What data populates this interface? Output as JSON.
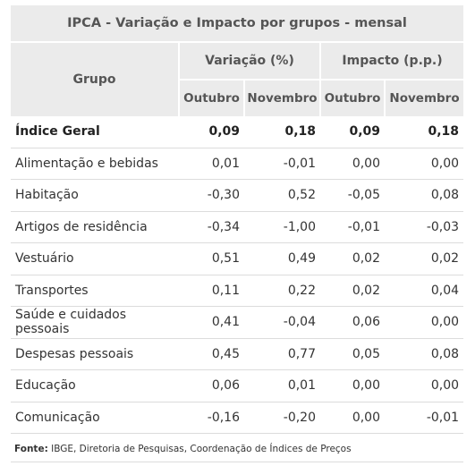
{
  "table": {
    "title": "IPCA - Variação e Impacto por grupos - mensal",
    "group_header": "Grupo",
    "variacao_header": "Variação (%)",
    "impacto_header": "Impacto (p.p.)",
    "month_headers": [
      "Outubro",
      "Novembro",
      "Outubro",
      "Novembro"
    ],
    "rows": [
      {
        "name": "Índice Geral",
        "values": [
          "0,09",
          "0,18",
          "0,09",
          "0,18"
        ]
      },
      {
        "name": "Alimentação e bebidas",
        "values": [
          "0,01",
          "-0,01",
          "0,00",
          "0,00"
        ]
      },
      {
        "name": "Habitação",
        "values": [
          "-0,30",
          "0,52",
          "-0,05",
          "0,08"
        ]
      },
      {
        "name": "Artigos de residência",
        "values": [
          "-0,34",
          "-1,00",
          "-0,01",
          "-0,03"
        ]
      },
      {
        "name": "Vestuário",
        "values": [
          "0,51",
          "0,49",
          "0,02",
          "0,02"
        ]
      },
      {
        "name": "Transportes",
        "values": [
          "0,11",
          "0,22",
          "0,02",
          "0,04"
        ]
      },
      {
        "name": "Saúde e cuidados pessoais",
        "values": [
          "0,41",
          "-0,04",
          "0,06",
          "0,00"
        ]
      },
      {
        "name": "Despesas pessoais",
        "values": [
          "0,45",
          "0,77",
          "0,05",
          "0,08"
        ]
      },
      {
        "name": "Educação",
        "values": [
          "0,06",
          "0,01",
          "0,00",
          "0,00"
        ]
      },
      {
        "name": "Comunicação",
        "values": [
          "-0,16",
          "-0,20",
          "0,00",
          "-0,01"
        ]
      }
    ]
  },
  "footnote": {
    "label": "Fonte:",
    "text": " IBGE, Diretoria de Pesquisas, Coordenação de Índices de Preços"
  },
  "colors": {
    "header_bg": "#ebebeb",
    "header_text": "#555555",
    "row_border": "#dcdcdc"
  }
}
